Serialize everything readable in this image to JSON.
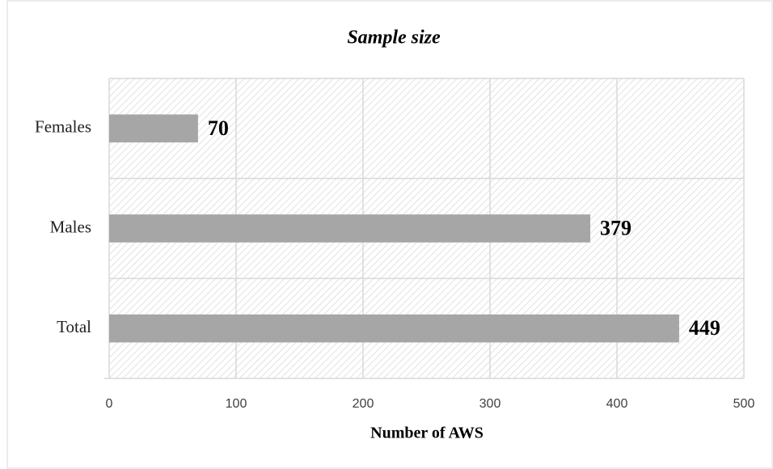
{
  "chart_data": {
    "type": "bar",
    "orientation": "horizontal",
    "title": "Sample size",
    "categories": [
      "Females",
      "Males",
      "Total"
    ],
    "values": [
      70,
      379,
      449
    ],
    "color": "#a6a6a6",
    "xlabel": "Number of AWS",
    "xlim": [
      0,
      500
    ],
    "xticks": [
      0,
      100,
      200,
      300,
      400,
      500
    ],
    "grid": true
  }
}
